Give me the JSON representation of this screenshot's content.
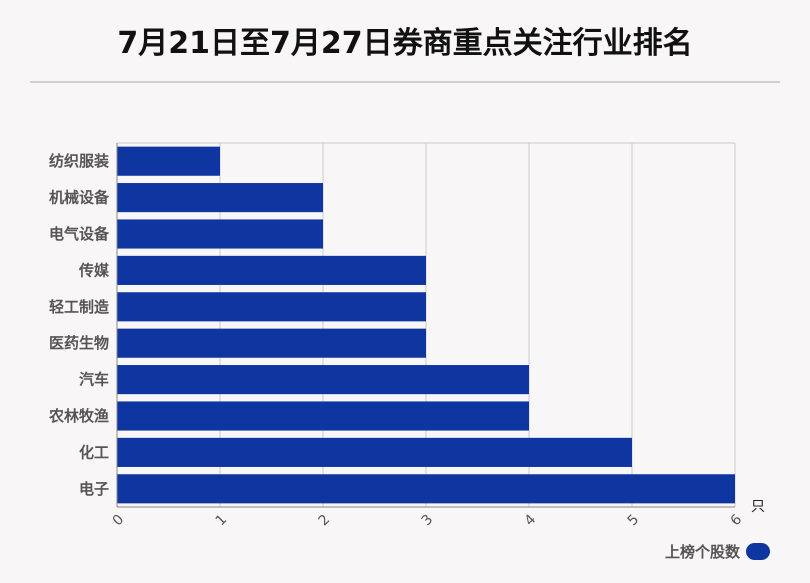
{
  "title": "7月21日至7月27日券商重点关注行业排名",
  "colors": {
    "bar": "#0e35a0",
    "grid": "#cccccc",
    "axis": "#888888"
  },
  "chart_data": {
    "type": "bar",
    "orientation": "horizontal",
    "categories": [
      "纺织服装",
      "机械设备",
      "电气设备",
      "传媒",
      "轻工制造",
      "医药生物",
      "汽车",
      "农林牧渔",
      "化工",
      "电子"
    ],
    "series": [
      {
        "name": "上榜个股数",
        "values": [
          1,
          2,
          2,
          3,
          3,
          3,
          4,
          4,
          5,
          6
        ]
      }
    ],
    "xlim": [
      0,
      6
    ],
    "xticks": [
      "0",
      "1",
      "2",
      "3",
      "4",
      "5",
      "6"
    ],
    "xunit": "只",
    "grid": true,
    "legend": "bottom-right"
  }
}
